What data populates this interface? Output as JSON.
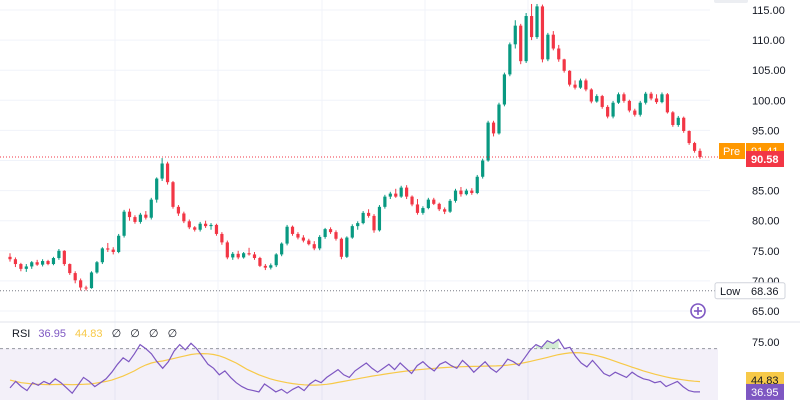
{
  "chart_data": [
    {
      "type": "candlestick",
      "price_axis": {
        "ticks": [
          "115.00",
          "110.00",
          "105.00",
          "100.00",
          "95.00",
          "90.00",
          "85.00",
          "80.00",
          "75.00",
          "70.00",
          "65.00"
        ],
        "ylim": [
          63.5,
          116.0
        ]
      },
      "labels": {
        "pre": {
          "text": "Pre",
          "value": "91.41"
        },
        "last": {
          "value": "90.58"
        },
        "low": {
          "text": "Low",
          "value": "68.36"
        }
      },
      "candles": [
        [
          74.0,
          74.6,
          73.2,
          73.6
        ],
        [
          73.6,
          73.9,
          72.3,
          72.8
        ],
        [
          72.8,
          73.0,
          71.6,
          72.0
        ],
        [
          72.0,
          72.8,
          71.5,
          72.4
        ],
        [
          72.4,
          73.3,
          72.0,
          73.1
        ],
        [
          73.1,
          73.5,
          72.5,
          72.7
        ],
        [
          72.7,
          73.6,
          72.4,
          73.3
        ],
        [
          73.3,
          73.5,
          72.6,
          72.8
        ],
        [
          72.8,
          74.0,
          72.6,
          73.8
        ],
        [
          73.8,
          75.3,
          73.5,
          75.0
        ],
        [
          75.0,
          75.1,
          72.5,
          72.8
        ],
        [
          72.8,
          72.9,
          71.0,
          71.3
        ],
        [
          71.3,
          71.6,
          69.6,
          70.1
        ],
        [
          70.1,
          70.4,
          68.4,
          68.9
        ],
        [
          68.9,
          69.2,
          68.4,
          68.8
        ],
        [
          68.8,
          71.6,
          68.7,
          71.4
        ],
        [
          71.4,
          73.3,
          71.2,
          73.1
        ],
        [
          73.1,
          75.6,
          72.8,
          75.4
        ],
        [
          75.4,
          76.3,
          74.8,
          75.2
        ],
        [
          75.2,
          75.6,
          74.4,
          74.8
        ],
        [
          74.8,
          77.8,
          74.6,
          77.5
        ],
        [
          77.5,
          81.8,
          77.2,
          81.5
        ],
        [
          81.5,
          82.0,
          80.0,
          80.6
        ],
        [
          80.6,
          80.9,
          79.5,
          79.8
        ],
        [
          79.8,
          81.3,
          79.5,
          81.0
        ],
        [
          81.0,
          81.6,
          80.2,
          80.5
        ],
        [
          80.5,
          83.8,
          80.2,
          83.5
        ],
        [
          83.5,
          87.2,
          83.0,
          87.0
        ],
        [
          87.0,
          90.4,
          86.6,
          89.5
        ],
        [
          89.5,
          89.8,
          86.0,
          86.4
        ],
        [
          86.4,
          86.6,
          82.0,
          82.3
        ],
        [
          82.3,
          82.6,
          80.8,
          81.2
        ],
        [
          81.2,
          81.5,
          79.6,
          79.9
        ],
        [
          79.9,
          80.2,
          78.6,
          78.9
        ],
        [
          78.9,
          79.1,
          78.2,
          78.5
        ],
        [
          78.5,
          79.8,
          78.2,
          79.5
        ],
        [
          79.5,
          80.0,
          78.8,
          79.1
        ],
        [
          79.1,
          79.6,
          78.5,
          79.3
        ],
        [
          79.3,
          79.5,
          77.5,
          77.8
        ],
        [
          77.8,
          78.1,
          76.0,
          76.4
        ],
        [
          76.4,
          76.7,
          73.6,
          73.9
        ],
        [
          73.9,
          74.8,
          73.5,
          74.5
        ],
        [
          74.5,
          75.0,
          73.6,
          73.9
        ],
        [
          73.9,
          74.8,
          73.7,
          74.6
        ],
        [
          74.6,
          75.5,
          74.2,
          74.4
        ],
        [
          74.4,
          74.8,
          73.5,
          73.8
        ],
        [
          73.8,
          74.0,
          72.3,
          72.5
        ],
        [
          72.5,
          72.8,
          71.8,
          72.2
        ],
        [
          72.2,
          72.9,
          71.9,
          72.6
        ],
        [
          72.6,
          74.6,
          72.3,
          74.4
        ],
        [
          74.4,
          76.4,
          74.1,
          76.2
        ],
        [
          76.2,
          79.3,
          75.9,
          79.0
        ],
        [
          79.0,
          79.2,
          77.5,
          77.8
        ],
        [
          77.8,
          78.1,
          76.9,
          77.2
        ],
        [
          77.2,
          77.6,
          76.4,
          76.7
        ],
        [
          76.7,
          77.0,
          75.9,
          76.1
        ],
        [
          76.1,
          76.6,
          75.1,
          75.4
        ],
        [
          75.4,
          77.6,
          75.1,
          77.3
        ],
        [
          77.3,
          78.8,
          77.0,
          78.6
        ],
        [
          78.6,
          78.9,
          77.8,
          78.1
        ],
        [
          78.1,
          78.4,
          76.7,
          77.0
        ],
        [
          77.0,
          77.2,
          73.6,
          74.0
        ],
        [
          74.0,
          77.4,
          73.8,
          77.2
        ],
        [
          77.2,
          79.4,
          77.0,
          79.1
        ],
        [
          79.1,
          79.9,
          78.5,
          79.6
        ],
        [
          79.6,
          81.6,
          79.4,
          81.3
        ],
        [
          81.3,
          81.9,
          80.5,
          80.8
        ],
        [
          80.8,
          81.1,
          78.0,
          78.4
        ],
        [
          78.4,
          82.6,
          78.2,
          82.3
        ],
        [
          82.3,
          84.3,
          82.0,
          84.0
        ],
        [
          84.0,
          84.8,
          83.6,
          84.5
        ],
        [
          84.5,
          85.3,
          83.8,
          84.0
        ],
        [
          84.0,
          85.8,
          83.8,
          85.5
        ],
        [
          85.5,
          85.9,
          83.6,
          84.0
        ],
        [
          84.0,
          84.2,
          82.4,
          82.7
        ],
        [
          82.7,
          83.6,
          81.0,
          81.3
        ],
        [
          81.3,
          82.4,
          81.0,
          82.1
        ],
        [
          82.1,
          83.8,
          81.9,
          83.5
        ],
        [
          83.5,
          83.8,
          82.6,
          82.8
        ],
        [
          82.8,
          83.0,
          81.6,
          81.9
        ],
        [
          81.9,
          82.2,
          81.1,
          81.5
        ],
        [
          81.5,
          83.6,
          81.3,
          83.3
        ],
        [
          83.3,
          85.3,
          83.0,
          85.0
        ],
        [
          85.0,
          85.6,
          84.0,
          84.4
        ],
        [
          84.4,
          85.3,
          84.2,
          85.0
        ],
        [
          85.0,
          85.4,
          84.3,
          84.6
        ],
        [
          84.6,
          87.6,
          84.4,
          87.3
        ],
        [
          87.3,
          90.3,
          87.0,
          90.0
        ],
        [
          90.0,
          96.6,
          89.8,
          96.3
        ],
        [
          96.3,
          96.6,
          94.0,
          94.5
        ],
        [
          94.5,
          99.6,
          94.3,
          99.3
        ],
        [
          99.3,
          104.6,
          99.0,
          104.3
        ],
        [
          104.3,
          109.6,
          104.0,
          109.3
        ],
        [
          109.3,
          113.3,
          108.6,
          112.4
        ],
        [
          112.4,
          112.7,
          106.0,
          106.5
        ],
        [
          106.5,
          114.5,
          106.2,
          114.0
        ],
        [
          114.0,
          116.0,
          110.0,
          110.5
        ],
        [
          110.5,
          116.0,
          110.2,
          115.6
        ],
        [
          115.6,
          115.9,
          106.3,
          106.8
        ],
        [
          106.8,
          111.2,
          106.5,
          110.9
        ],
        [
          110.9,
          111.5,
          108.3,
          108.6
        ],
        [
          108.6,
          109.2,
          106.4,
          106.8
        ],
        [
          106.8,
          106.9,
          104.6,
          104.9
        ],
        [
          104.9,
          105.0,
          102.3,
          102.6
        ],
        [
          102.6,
          103.3,
          101.8,
          102.1
        ],
        [
          102.1,
          103.6,
          101.9,
          103.3
        ],
        [
          103.3,
          103.6,
          101.5,
          101.8
        ],
        [
          101.8,
          102.0,
          99.5,
          99.8
        ],
        [
          99.8,
          101.0,
          99.6,
          100.7
        ],
        [
          100.7,
          100.9,
          98.6,
          98.9
        ],
        [
          98.9,
          99.2,
          97.0,
          97.3
        ],
        [
          97.3,
          99.9,
          97.0,
          99.6
        ],
        [
          99.6,
          101.3,
          99.4,
          101.0
        ],
        [
          101.0,
          101.3,
          99.6,
          99.9
        ],
        [
          99.9,
          100.1,
          98.0,
          98.3
        ],
        [
          98.3,
          98.6,
          97.3,
          97.6
        ],
        [
          97.6,
          99.9,
          97.3,
          99.6
        ],
        [
          99.6,
          101.4,
          99.3,
          101.1
        ],
        [
          101.1,
          101.4,
          100.0,
          100.3
        ],
        [
          100.3,
          101.0,
          99.4,
          99.7
        ],
        [
          99.7,
          101.3,
          99.5,
          101.0
        ],
        [
          101.0,
          101.2,
          97.8,
          98.0
        ],
        [
          98.0,
          98.2,
          95.6,
          95.9
        ],
        [
          95.9,
          97.4,
          95.6,
          97.1
        ],
        [
          97.1,
          97.3,
          94.6,
          94.9
        ],
        [
          94.9,
          95.0,
          92.6,
          92.9
        ],
        [
          92.9,
          93.1,
          91.3,
          91.6
        ],
        [
          91.6,
          92.0,
          90.3,
          90.58
        ]
      ]
    },
    {
      "type": "line",
      "title": "RSI",
      "values": [
        "36.95",
        "44.83",
        "∅",
        "∅",
        "∅",
        "∅"
      ],
      "colors": {
        "rsi": "#7e57c2",
        "ma": "#f7c948"
      },
      "axis": {
        "ticks": [
          "75.00"
        ],
        "ylim": [
          26.0,
          80.0
        ]
      },
      "labels": {
        "ma_value": "44.83",
        "rsi_value": "36.95"
      },
      "bands": {
        "upper": 70,
        "lower": 30
      },
      "series": [
        {
          "values": [
            40.0,
            45.0,
            41.0,
            38.0,
            44.0,
            42.0,
            45.0,
            43.0,
            47.0,
            44.0,
            40.0,
            36.0,
            42.0,
            48.0,
            45.0,
            41.0,
            44.0,
            47.0,
            52.0,
            58.0,
            63.0,
            60.0,
            66.0,
            73.0,
            70.0,
            66.0,
            60.0,
            55.0,
            60.0,
            68.0,
            73.0,
            69.0,
            74.0,
            70.0,
            64.0,
            58.0,
            55.0,
            50.0,
            53.0,
            48.0,
            44.0,
            41.0,
            39.0,
            38.0,
            37.0,
            43.0,
            40.0,
            37.0,
            39.0,
            36.0,
            39.0,
            41.0,
            38.0,
            43.0,
            46.0,
            44.0,
            48.0,
            51.0,
            54.0,
            50.0,
            48.0,
            53.0,
            56.0,
            59.0,
            55.0,
            52.0,
            55.0,
            58.0,
            54.0,
            59.0,
            55.0,
            51.0,
            57.0,
            60.0,
            56.0,
            53.0,
            58.0,
            60.0,
            57.0,
            55.0,
            61.0,
            57.0,
            52.0,
            56.0,
            60.0,
            55.0,
            52.0,
            56.0,
            62.0,
            60.0,
            57.0,
            63.0,
            69.0,
            73.0,
            71.0,
            76.0,
            74.0,
            77.0,
            70.0,
            71.0,
            64.0,
            59.0,
            56.0,
            61.0,
            56.0,
            51.0,
            49.0,
            52.0,
            50.0,
            48.0,
            52.0,
            49.0,
            47.0,
            46.0,
            44.0,
            45.0,
            41.0,
            43.0,
            45.0,
            41.0,
            38.0,
            37.0,
            36.95
          ]
        },
        {
          "values": [
            46.0,
            45.0,
            44.0,
            43.5,
            43.0,
            42.8,
            42.6,
            42.5,
            42.6,
            42.7,
            42.6,
            42.5,
            42.6,
            42.8,
            43.0,
            43.5,
            44.2,
            45.0,
            46.0,
            47.5,
            49.0,
            51.0,
            53.0,
            55.5,
            57.5,
            59.0,
            60.0,
            60.5,
            61.5,
            62.5,
            63.5,
            64.5,
            65.5,
            66.0,
            66.2,
            66.0,
            65.5,
            64.5,
            63.0,
            61.0,
            59.0,
            56.5,
            54.0,
            52.0,
            50.0,
            48.5,
            47.0,
            45.8,
            44.8,
            44.0,
            43.3,
            42.8,
            42.4,
            42.2,
            42.2,
            42.4,
            42.8,
            43.4,
            44.2,
            45.0,
            45.8,
            46.6,
            47.4,
            48.2,
            49.0,
            49.6,
            50.3,
            51.0,
            51.6,
            52.2,
            52.8,
            53.3,
            53.8,
            54.2,
            54.6,
            55.0,
            55.3,
            55.6,
            55.8,
            56.0,
            56.2,
            56.3,
            56.4,
            56.5,
            56.6,
            56.7,
            56.8,
            57.0,
            57.4,
            57.9,
            58.5,
            59.3,
            60.2,
            61.2,
            62.2,
            63.3,
            64.4,
            65.4,
            66.2,
            66.7,
            66.9,
            66.7,
            66.2,
            65.4,
            64.4,
            63.2,
            61.8,
            60.3,
            58.8,
            57.3,
            55.8,
            54.4,
            53.0,
            51.7,
            50.5,
            49.4,
            48.4,
            47.5,
            46.8,
            46.2,
            45.6,
            45.1,
            44.83
          ]
        }
      ]
    }
  ]
}
